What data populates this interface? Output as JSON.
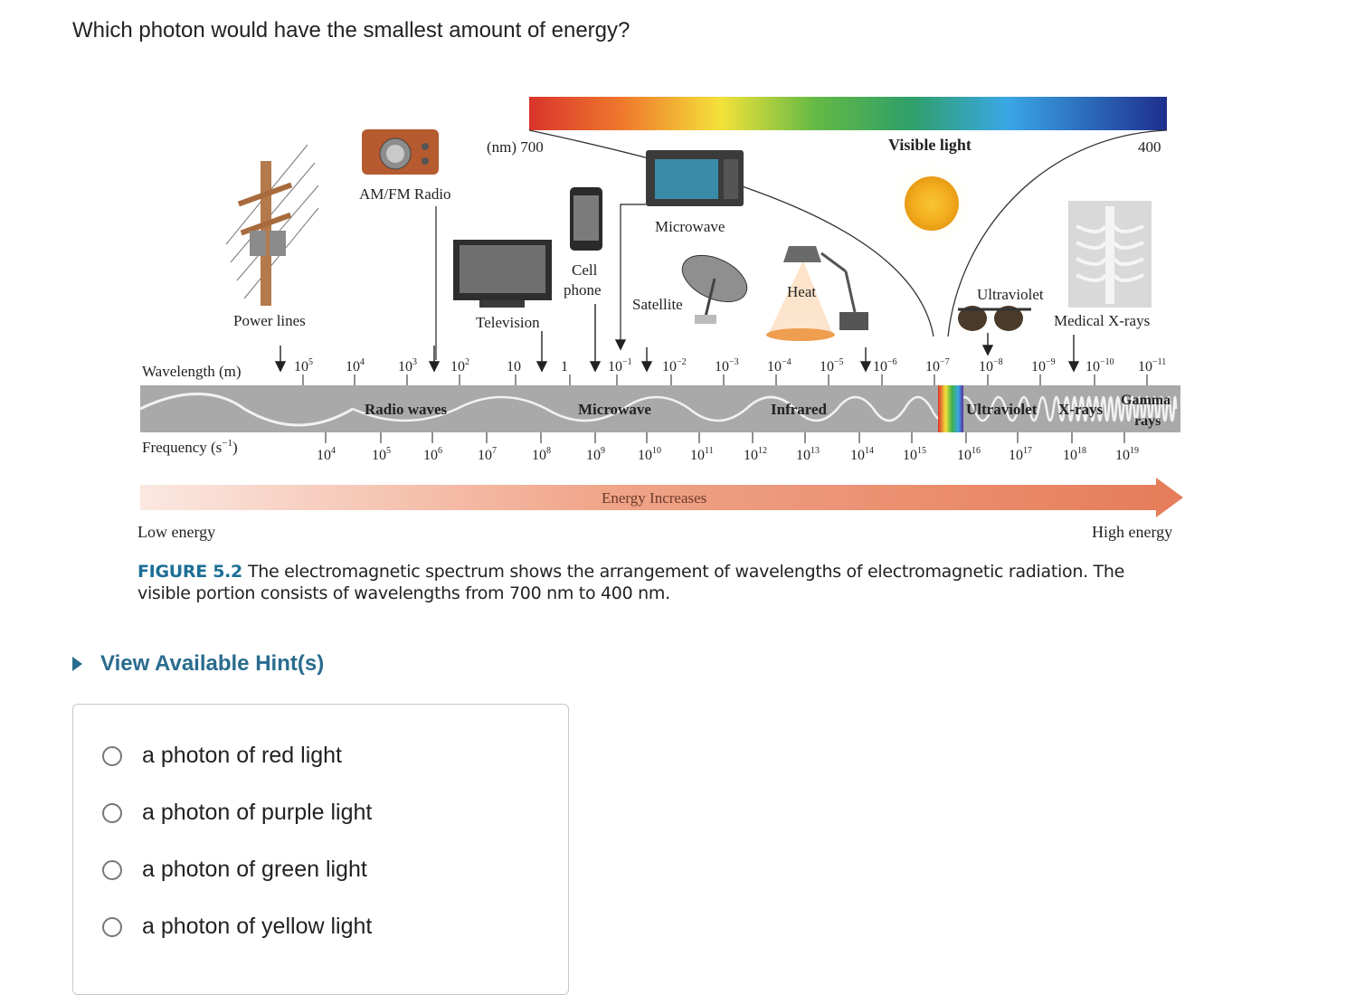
{
  "question": "Which photon would have the smallest amount of energy?",
  "figure": {
    "nm_700": "(nm)  700",
    "nm_400": "400",
    "visible_light": "Visible light",
    "sources": {
      "am_fm_radio": "AM/FM Radio",
      "microwave": "Microwave",
      "cell_phone_1": "Cell",
      "cell_phone_2": "phone",
      "television": "Television",
      "satellite": "Satellite",
      "heat": "Heat",
      "ultraviolet": "Ultraviolet",
      "medical_xrays": "Medical X-rays",
      "power_lines": "Power lines"
    },
    "wavelength_label": "Wavelength (m)",
    "wavelength_ticks": [
      {
        "base": "10",
        "exp": "5"
      },
      {
        "base": "10",
        "exp": "4"
      },
      {
        "base": "10",
        "exp": "3"
      },
      {
        "base": "10",
        "exp": "2"
      },
      {
        "base": "10",
        "exp": ""
      },
      {
        "base": "1",
        "exp": ""
      },
      {
        "base": "10",
        "exp": "−1"
      },
      {
        "base": "10",
        "exp": "−2"
      },
      {
        "base": "10",
        "exp": "−3"
      },
      {
        "base": "10",
        "exp": "−4"
      },
      {
        "base": "10",
        "exp": "−5"
      },
      {
        "base": "10",
        "exp": "−6"
      },
      {
        "base": "10",
        "exp": "−7"
      },
      {
        "base": "10",
        "exp": "−8"
      },
      {
        "base": "10",
        "exp": "−9"
      },
      {
        "base": "10",
        "exp": "−10"
      },
      {
        "base": "10",
        "exp": "−11"
      }
    ],
    "bands": {
      "radio": "Radio waves",
      "microwave": "Microwave",
      "infrared": "Infrared",
      "ultraviolet": "Ultraviolet",
      "xrays": "X-rays",
      "gamma_1": "Gamma",
      "gamma_2": "rays"
    },
    "frequency_label": "Frequency (s",
    "frequency_exp": "−1",
    "frequency_close": ")",
    "frequency_ticks": [
      {
        "base": "10",
        "exp": "4"
      },
      {
        "base": "10",
        "exp": "5"
      },
      {
        "base": "10",
        "exp": "6"
      },
      {
        "base": "10",
        "exp": "7"
      },
      {
        "base": "10",
        "exp": "8"
      },
      {
        "base": "10",
        "exp": "9"
      },
      {
        "base": "10",
        "exp": "10"
      },
      {
        "base": "10",
        "exp": "11"
      },
      {
        "base": "10",
        "exp": "12"
      },
      {
        "base": "10",
        "exp": "13"
      },
      {
        "base": "10",
        "exp": "14"
      },
      {
        "base": "10",
        "exp": "15"
      },
      {
        "base": "10",
        "exp": "16"
      },
      {
        "base": "10",
        "exp": "17"
      },
      {
        "base": "10",
        "exp": "18"
      },
      {
        "base": "10",
        "exp": "19"
      }
    ],
    "energy_increases": "Energy Increases",
    "low_energy": "Low energy",
    "high_energy": "High energy",
    "caption_label": "FIGURE 5.2",
    "caption_text": "The electromagnetic spectrum shows the arrangement of wavelengths of electromagnetic radiation. The visible portion consists of wavelengths from 700 nm to 400 nm."
  },
  "hint": "View Available Hint(s)",
  "options": [
    "a photon of red light",
    "a photon of purple light",
    "a photon of green light",
    "a photon of yellow light"
  ],
  "colors": {
    "hint_blue": "#2a6c8f",
    "caption_label_blue": "#1d6f95",
    "band_gray": "#a9a9a9",
    "energy_arrow": "#e57c5a"
  }
}
